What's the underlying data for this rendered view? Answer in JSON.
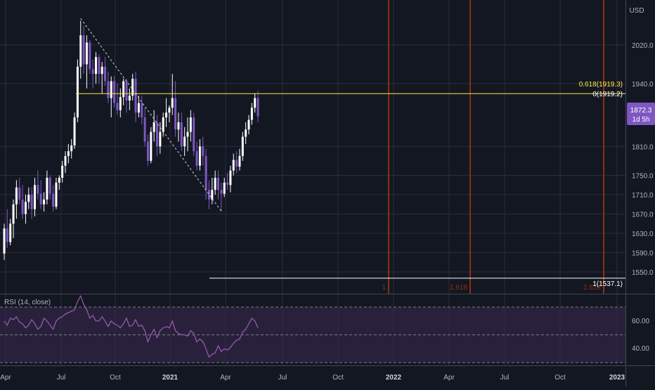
{
  "currency_label": "USD",
  "current_price": {
    "value": "1872.3",
    "timer": "1d 5h",
    "color": "#7e57c2"
  },
  "colors": {
    "background": "#131722",
    "grid": "#2a2e39",
    "up_candle": "#ffffff",
    "down_candle": "#7e57c2",
    "fib_line": "#ffeb3b",
    "time_zone_line": "#8b2e12",
    "rsi_line": "#9c5cb4",
    "rsi_band": "#3d2a52"
  },
  "fib_retracement": {
    "level_618_label": "0.618(1919.3)",
    "level_0_label": "0(1919.2)",
    "level_1_label": "1(1537.1)",
    "level_price": 1919.3,
    "level_1_price": 1537.1
  },
  "fib_time_zones": [
    {
      "label": "1",
      "x_label": "Dec 2021"
    },
    {
      "label": "1.618",
      "x_label": "May 2022"
    },
    {
      "label": "2.618",
      "x_label": "Dec 2022"
    }
  ],
  "rsi": {
    "title": "RSI (14, close)",
    "upper": 70,
    "middle": 50,
    "lower": 30,
    "ticks": [
      "60.00",
      "40.00"
    ]
  },
  "chart_data": {
    "type": "candlestick",
    "title": "",
    "y_axis": {
      "ticks": [
        2020.0,
        1940.0,
        1810.0,
        1750.0,
        1710.0,
        1670.0,
        1630.0,
        1590.0,
        1550.0
      ],
      "range": [
        1515,
        2100
      ]
    },
    "x_axis": {
      "ticks": [
        "Apr",
        "Jul",
        "Oct",
        "2021",
        "Apr",
        "Jul",
        "Oct",
        "2022",
        "Apr",
        "Jul",
        "Oct",
        "2023"
      ]
    },
    "candles": [
      [
        1588,
        1650,
        1575,
        1640
      ],
      [
        1640,
        1680,
        1600,
        1612
      ],
      [
        1612,
        1660,
        1605,
        1650
      ],
      [
        1650,
        1700,
        1620,
        1690
      ],
      [
        1690,
        1740,
        1660,
        1725
      ],
      [
        1725,
        1745,
        1690,
        1700
      ],
      [
        1700,
        1730,
        1660,
        1670
      ],
      [
        1670,
        1710,
        1650,
        1695
      ],
      [
        1695,
        1725,
        1680,
        1710
      ],
      [
        1710,
        1725,
        1660,
        1680
      ],
      [
        1680,
        1745,
        1665,
        1730
      ],
      [
        1730,
        1760,
        1700,
        1712
      ],
      [
        1712,
        1740,
        1680,
        1690
      ],
      [
        1690,
        1715,
        1675,
        1700
      ],
      [
        1700,
        1760,
        1690,
        1745
      ],
      [
        1745,
        1750,
        1700,
        1712
      ],
      [
        1712,
        1730,
        1675,
        1685
      ],
      [
        1685,
        1745,
        1680,
        1735
      ],
      [
        1735,
        1750,
        1720,
        1745
      ],
      [
        1745,
        1780,
        1735,
        1770
      ],
      [
        1770,
        1800,
        1755,
        1790
      ],
      [
        1790,
        1815,
        1775,
        1800
      ],
      [
        1800,
        1825,
        1785,
        1812
      ],
      [
        1812,
        1880,
        1805,
        1870
      ],
      [
        1870,
        1990,
        1860,
        1975
      ],
      [
        1975,
        2070,
        1950,
        2040
      ],
      [
        2040,
        2060,
        1960,
        1980
      ],
      [
        1980,
        2040,
        1930,
        2025
      ],
      [
        2025,
        2030,
        1960,
        1970
      ],
      [
        1970,
        1990,
        1930,
        1960
      ],
      [
        1960,
        2005,
        1940,
        1995
      ],
      [
        1995,
        2000,
        1940,
        1960
      ],
      [
        1960,
        1985,
        1920,
        1975
      ],
      [
        1975,
        1995,
        1935,
        1945
      ],
      [
        1945,
        1965,
        1900,
        1910
      ],
      [
        1910,
        1955,
        1870,
        1945
      ],
      [
        1945,
        1955,
        1890,
        1900
      ],
      [
        1900,
        1940,
        1875,
        1885
      ],
      [
        1885,
        1930,
        1870,
        1912
      ],
      [
        1912,
        1950,
        1895,
        1945
      ],
      [
        1945,
        1950,
        1880,
        1905
      ],
      [
        1905,
        1930,
        1885,
        1915
      ],
      [
        1915,
        1960,
        1905,
        1950
      ],
      [
        1950,
        1965,
        1860,
        1880
      ],
      [
        1880,
        1915,
        1870,
        1900
      ],
      [
        1900,
        1915,
        1855,
        1870
      ],
      [
        1870,
        1890,
        1810,
        1820
      ],
      [
        1820,
        1835,
        1770,
        1780
      ],
      [
        1780,
        1850,
        1775,
        1840
      ],
      [
        1840,
        1885,
        1820,
        1860
      ],
      [
        1860,
        1875,
        1790,
        1810
      ],
      [
        1810,
        1860,
        1795,
        1840
      ],
      [
        1840,
        1880,
        1830,
        1870
      ],
      [
        1870,
        1910,
        1850,
        1880
      ],
      [
        1880,
        1895,
        1860,
        1890
      ],
      [
        1890,
        1960,
        1875,
        1910
      ],
      [
        1910,
        1945,
        1830,
        1845
      ],
      [
        1845,
        1880,
        1820,
        1860
      ],
      [
        1860,
        1880,
        1800,
        1810
      ],
      [
        1810,
        1850,
        1790,
        1830
      ],
      [
        1830,
        1870,
        1800,
        1840
      ],
      [
        1840,
        1885,
        1820,
        1870
      ],
      [
        1870,
        1880,
        1790,
        1800
      ],
      [
        1800,
        1820,
        1760,
        1770
      ],
      [
        1770,
        1825,
        1760,
        1810
      ],
      [
        1810,
        1830,
        1770,
        1790
      ],
      [
        1790,
        1805,
        1700,
        1720
      ],
      [
        1720,
        1740,
        1680,
        1700
      ],
      [
        1700,
        1745,
        1690,
        1720
      ],
      [
        1720,
        1760,
        1710,
        1745
      ],
      [
        1745,
        1760,
        1700,
        1720
      ],
      [
        1720,
        1735,
        1675,
        1712
      ],
      [
        1712,
        1745,
        1705,
        1735
      ],
      [
        1735,
        1755,
        1720,
        1730
      ],
      [
        1730,
        1770,
        1715,
        1760
      ],
      [
        1760,
        1795,
        1750,
        1782
      ],
      [
        1782,
        1800,
        1755,
        1768
      ],
      [
        1768,
        1805,
        1760,
        1790
      ],
      [
        1790,
        1840,
        1780,
        1830
      ],
      [
        1830,
        1860,
        1815,
        1845
      ],
      [
        1845,
        1875,
        1835,
        1865
      ],
      [
        1865,
        1900,
        1855,
        1890
      ],
      [
        1890,
        1920,
        1880,
        1910
      ],
      [
        1910,
        1925,
        1860,
        1872.3
      ]
    ],
    "zigzag": [
      {
        "bar": 25,
        "price": 2075
      },
      {
        "bar": 71,
        "price": 1676
      }
    ],
    "rsi_values": [
      60,
      57,
      62,
      61,
      63,
      59,
      58,
      55,
      57,
      61,
      58,
      54,
      56,
      62,
      60,
      57,
      54,
      60,
      62,
      63,
      65,
      66,
      67,
      68,
      74,
      78,
      72,
      68,
      62,
      64,
      60,
      60,
      63,
      60,
      56,
      60,
      58,
      57,
      55,
      58,
      62,
      56,
      57,
      61,
      56,
      57,
      53,
      45,
      50,
      54,
      48,
      53,
      55,
      56,
      55,
      60,
      53,
      51,
      50,
      50,
      49,
      53,
      51,
      45,
      47,
      45,
      40,
      34,
      36,
      37,
      42,
      38,
      40,
      39,
      41,
      44,
      46,
      47,
      52,
      54,
      58,
      62,
      60,
      55
    ]
  }
}
